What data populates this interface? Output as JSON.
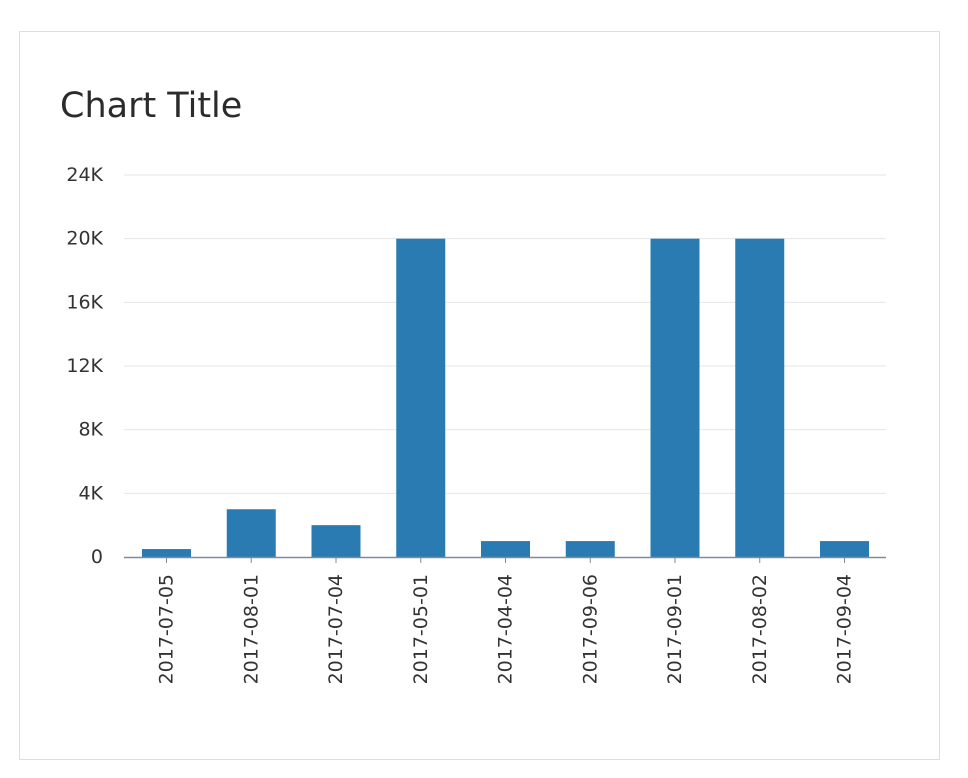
{
  "chart_data": {
    "type": "bar",
    "title": "Chart Title",
    "xlabel": "",
    "ylabel": "",
    "categories": [
      "2017-07-05",
      "2017-08-01",
      "2017-07-04",
      "2017-05-01",
      "2017-04-04",
      "2017-09-06",
      "2017-09-01",
      "2017-08-02",
      "2017-09-04"
    ],
    "values": [
      500,
      3000,
      2000,
      20000,
      1000,
      1000,
      20000,
      20000,
      1000
    ],
    "ylim": [
      0,
      24000
    ],
    "yticks": [
      0,
      4000,
      8000,
      12000,
      16000,
      20000,
      24000
    ],
    "ytick_labels": [
      "0",
      "4K",
      "8K",
      "12K",
      "16K",
      "20K",
      "24K"
    ],
    "grid": true,
    "legend": "none",
    "colors": {
      "bar": "#2a7bb1",
      "grid": "#e6e6e6",
      "axis": "#808b99",
      "text": "#333333"
    }
  }
}
